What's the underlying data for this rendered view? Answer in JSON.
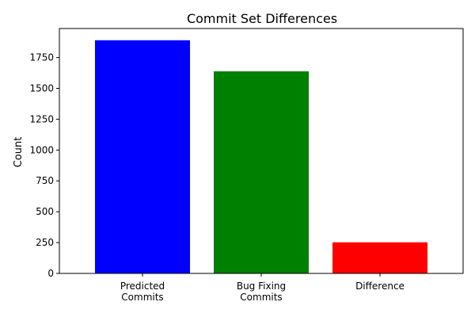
{
  "chart_data": {
    "type": "bar",
    "title": "Commit Set Differences",
    "xlabel": "",
    "ylabel": "Count",
    "categories": [
      [
        "Predicted",
        "Commits"
      ],
      [
        "Bug Fixing",
        "Commits"
      ],
      [
        "Difference"
      ]
    ],
    "values": [
      1890,
      1638,
      252
    ],
    "colors": [
      "#0000ff",
      "#008000",
      "#ff0000"
    ],
    "ylim": [
      0,
      1985
    ],
    "yticks": [
      0,
      250,
      500,
      750,
      1000,
      1250,
      1500,
      1750
    ],
    "grid": false,
    "legend": null
  }
}
